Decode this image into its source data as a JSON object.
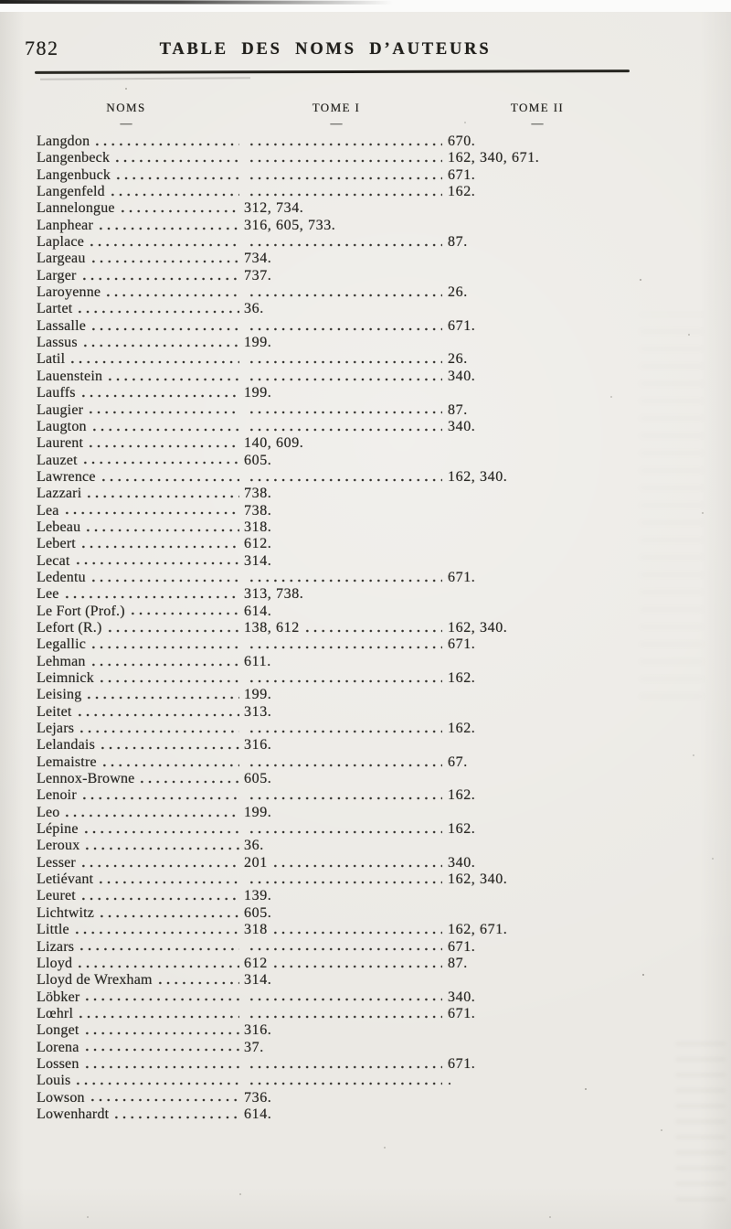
{
  "page": {
    "page_number": "782",
    "title": "TABLE DES NOMS D’AUTEURS"
  },
  "table": {
    "columns": [
      {
        "label": "NOMS"
      },
      {
        "label": "TOME I"
      },
      {
        "label": "TOME II"
      }
    ],
    "column_underline": "—",
    "rows": [
      {
        "name": "Langdon",
        "tome1": "",
        "tome2": "670."
      },
      {
        "name": "Langenbeck",
        "tome1": "",
        "tome2": "162, 340, 671."
      },
      {
        "name": "Langenbuck",
        "tome1": "",
        "tome2": "671."
      },
      {
        "name": "Langenfeld",
        "tome1": "",
        "tome2": "162."
      },
      {
        "name": "Lannelongue",
        "tome1": "312, 734.",
        "tome2": ""
      },
      {
        "name": "Lanphear",
        "tome1": "316, 605, 733.",
        "tome2": ""
      },
      {
        "name": "Laplace",
        "tome1": "",
        "tome2": "87."
      },
      {
        "name": "Largeau",
        "tome1": "734.",
        "tome2": ""
      },
      {
        "name": "Larger",
        "tome1": "737.",
        "tome2": ""
      },
      {
        "name": "Laroyenne",
        "tome1": "",
        "tome2": "26."
      },
      {
        "name": "Lartet",
        "tome1": "36.",
        "tome2": ""
      },
      {
        "name": "Lassalle",
        "tome1": "",
        "tome2": "671."
      },
      {
        "name": "Lassus",
        "tome1": "199.",
        "tome2": ""
      },
      {
        "name": "Latil",
        "tome1": "",
        "tome2": "26."
      },
      {
        "name": "Lauenstein",
        "tome1": "",
        "tome2": "340."
      },
      {
        "name": "Lauffs",
        "tome1": "199.",
        "tome2": ""
      },
      {
        "name": "Laugier",
        "tome1": "",
        "tome2": "87."
      },
      {
        "name": "Laugton",
        "tome1": "",
        "tome2": "340."
      },
      {
        "name": "Laurent",
        "tome1": "140, 609.",
        "tome2": ""
      },
      {
        "name": "Lauzet",
        "tome1": "605.",
        "tome2": ""
      },
      {
        "name": "Lawrence",
        "tome1": "",
        "tome2": "162, 340."
      },
      {
        "name": "Lazzari",
        "tome1": "738.",
        "tome2": ""
      },
      {
        "name": "Lea",
        "tome1": "738.",
        "tome2": ""
      },
      {
        "name": "Lebeau",
        "tome1": "318.",
        "tome2": ""
      },
      {
        "name": "Lebert",
        "tome1": "612.",
        "tome2": ""
      },
      {
        "name": "Lecat",
        "tome1": "314.",
        "tome2": ""
      },
      {
        "name": "Ledentu",
        "tome1": "",
        "tome2": "671."
      },
      {
        "name": "Lee",
        "tome1": "313, 738.",
        "tome2": ""
      },
      {
        "name": "Le Fort (Prof.)",
        "tome1": "614.",
        "tome2": ""
      },
      {
        "name": "Lefort (R.)",
        "tome1": "138, 612",
        "tome2": "162, 340."
      },
      {
        "name": "Legallic",
        "tome1": "",
        "tome2": "671."
      },
      {
        "name": "Lehman",
        "tome1": "611.",
        "tome2": ""
      },
      {
        "name": "Leimnick",
        "tome1": "",
        "tome2": "162."
      },
      {
        "name": "Leising",
        "tome1": "199.",
        "tome2": ""
      },
      {
        "name": "Leitet",
        "tome1": "313.",
        "tome2": ""
      },
      {
        "name": "Lejars",
        "tome1": "",
        "tome2": "162."
      },
      {
        "name": "Lelandais",
        "tome1": "316.",
        "tome2": ""
      },
      {
        "name": "Lemaistre",
        "tome1": "",
        "tome2": "67."
      },
      {
        "name": "Lennox-Browne",
        "tome1": "605.",
        "tome2": ""
      },
      {
        "name": "Lenoir",
        "tome1": "",
        "tome2": "162."
      },
      {
        "name": "Leo",
        "tome1": "199.",
        "tome2": ""
      },
      {
        "name": "Lépine",
        "tome1": "",
        "tome2": "162."
      },
      {
        "name": "Leroux",
        "tome1": "36.",
        "tome2": ""
      },
      {
        "name": "Lesser",
        "tome1": "201",
        "tome2": "340."
      },
      {
        "name": "Letiévant",
        "tome1": "",
        "tome2": "162, 340."
      },
      {
        "name": "Leuret",
        "tome1": "139.",
        "tome2": ""
      },
      {
        "name": "Lichtwitz",
        "tome1": "605.",
        "tome2": ""
      },
      {
        "name": "Little",
        "tome1": "318",
        "tome2": "162, 671."
      },
      {
        "name": "Lizars",
        "tome1": "",
        "tome2": "671."
      },
      {
        "name": "Lloyd",
        "tome1": "612",
        "tome2": "87."
      },
      {
        "name": "Lloyd de Wrexham",
        "tome1": "314.",
        "tome2": ""
      },
      {
        "name": "Löbker",
        "tome1": "",
        "tome2": "340."
      },
      {
        "name": "Lœhrl",
        "tome1": "",
        "tome2": "671."
      },
      {
        "name": "Longet",
        "tome1": "316.",
        "tome2": ""
      },
      {
        "name": "Lorena",
        "tome1": "37.",
        "tome2": ""
      },
      {
        "name": "Lossen",
        "tome1": "",
        "tome2": "671."
      },
      {
        "name": "Louis",
        "tome1": "",
        "tome2": "."
      },
      {
        "name": "Lowson",
        "tome1": "736.",
        "tome2": ""
      },
      {
        "name": "Lowenhardt",
        "tome1": "614.",
        "tome2": ""
      }
    ]
  }
}
